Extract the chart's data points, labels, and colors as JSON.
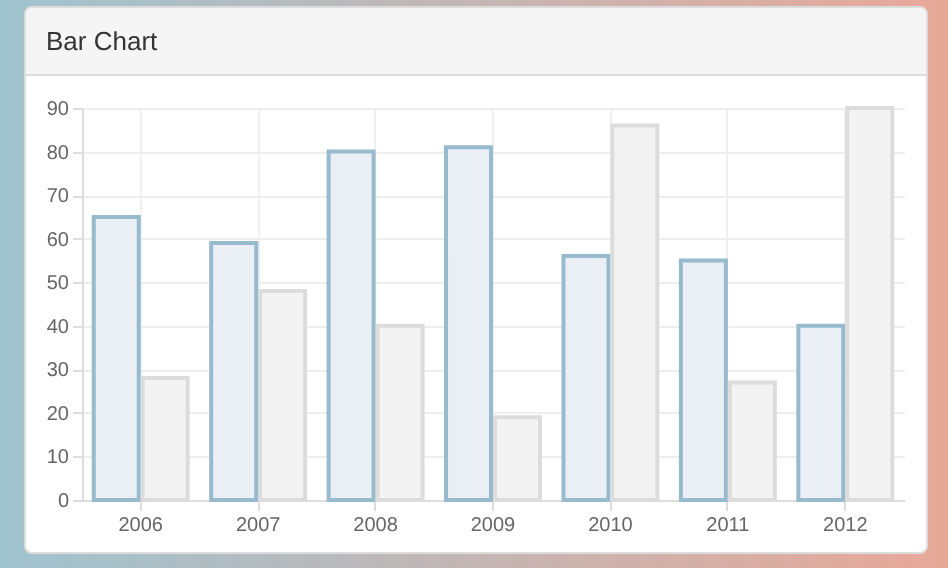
{
  "chart_data": {
    "type": "bar",
    "title": "Bar Chart",
    "categories": [
      "2006",
      "2007",
      "2008",
      "2009",
      "2010",
      "2011",
      "2012"
    ],
    "series": [
      {
        "color": "#e9eff4",
        "values": [
          65,
          59,
          80,
          81,
          56,
          55,
          40
        ]
      },
      {
        "color": "#f3f3f3",
        "values": [
          28,
          48,
          40,
          19,
          86,
          27,
          90
        ]
      }
    ],
    "ylim": [
      0,
      90
    ],
    "yticks": [
      0,
      10,
      20,
      30,
      40,
      50,
      60,
      70,
      80,
      90
    ],
    "grid": true
  }
}
